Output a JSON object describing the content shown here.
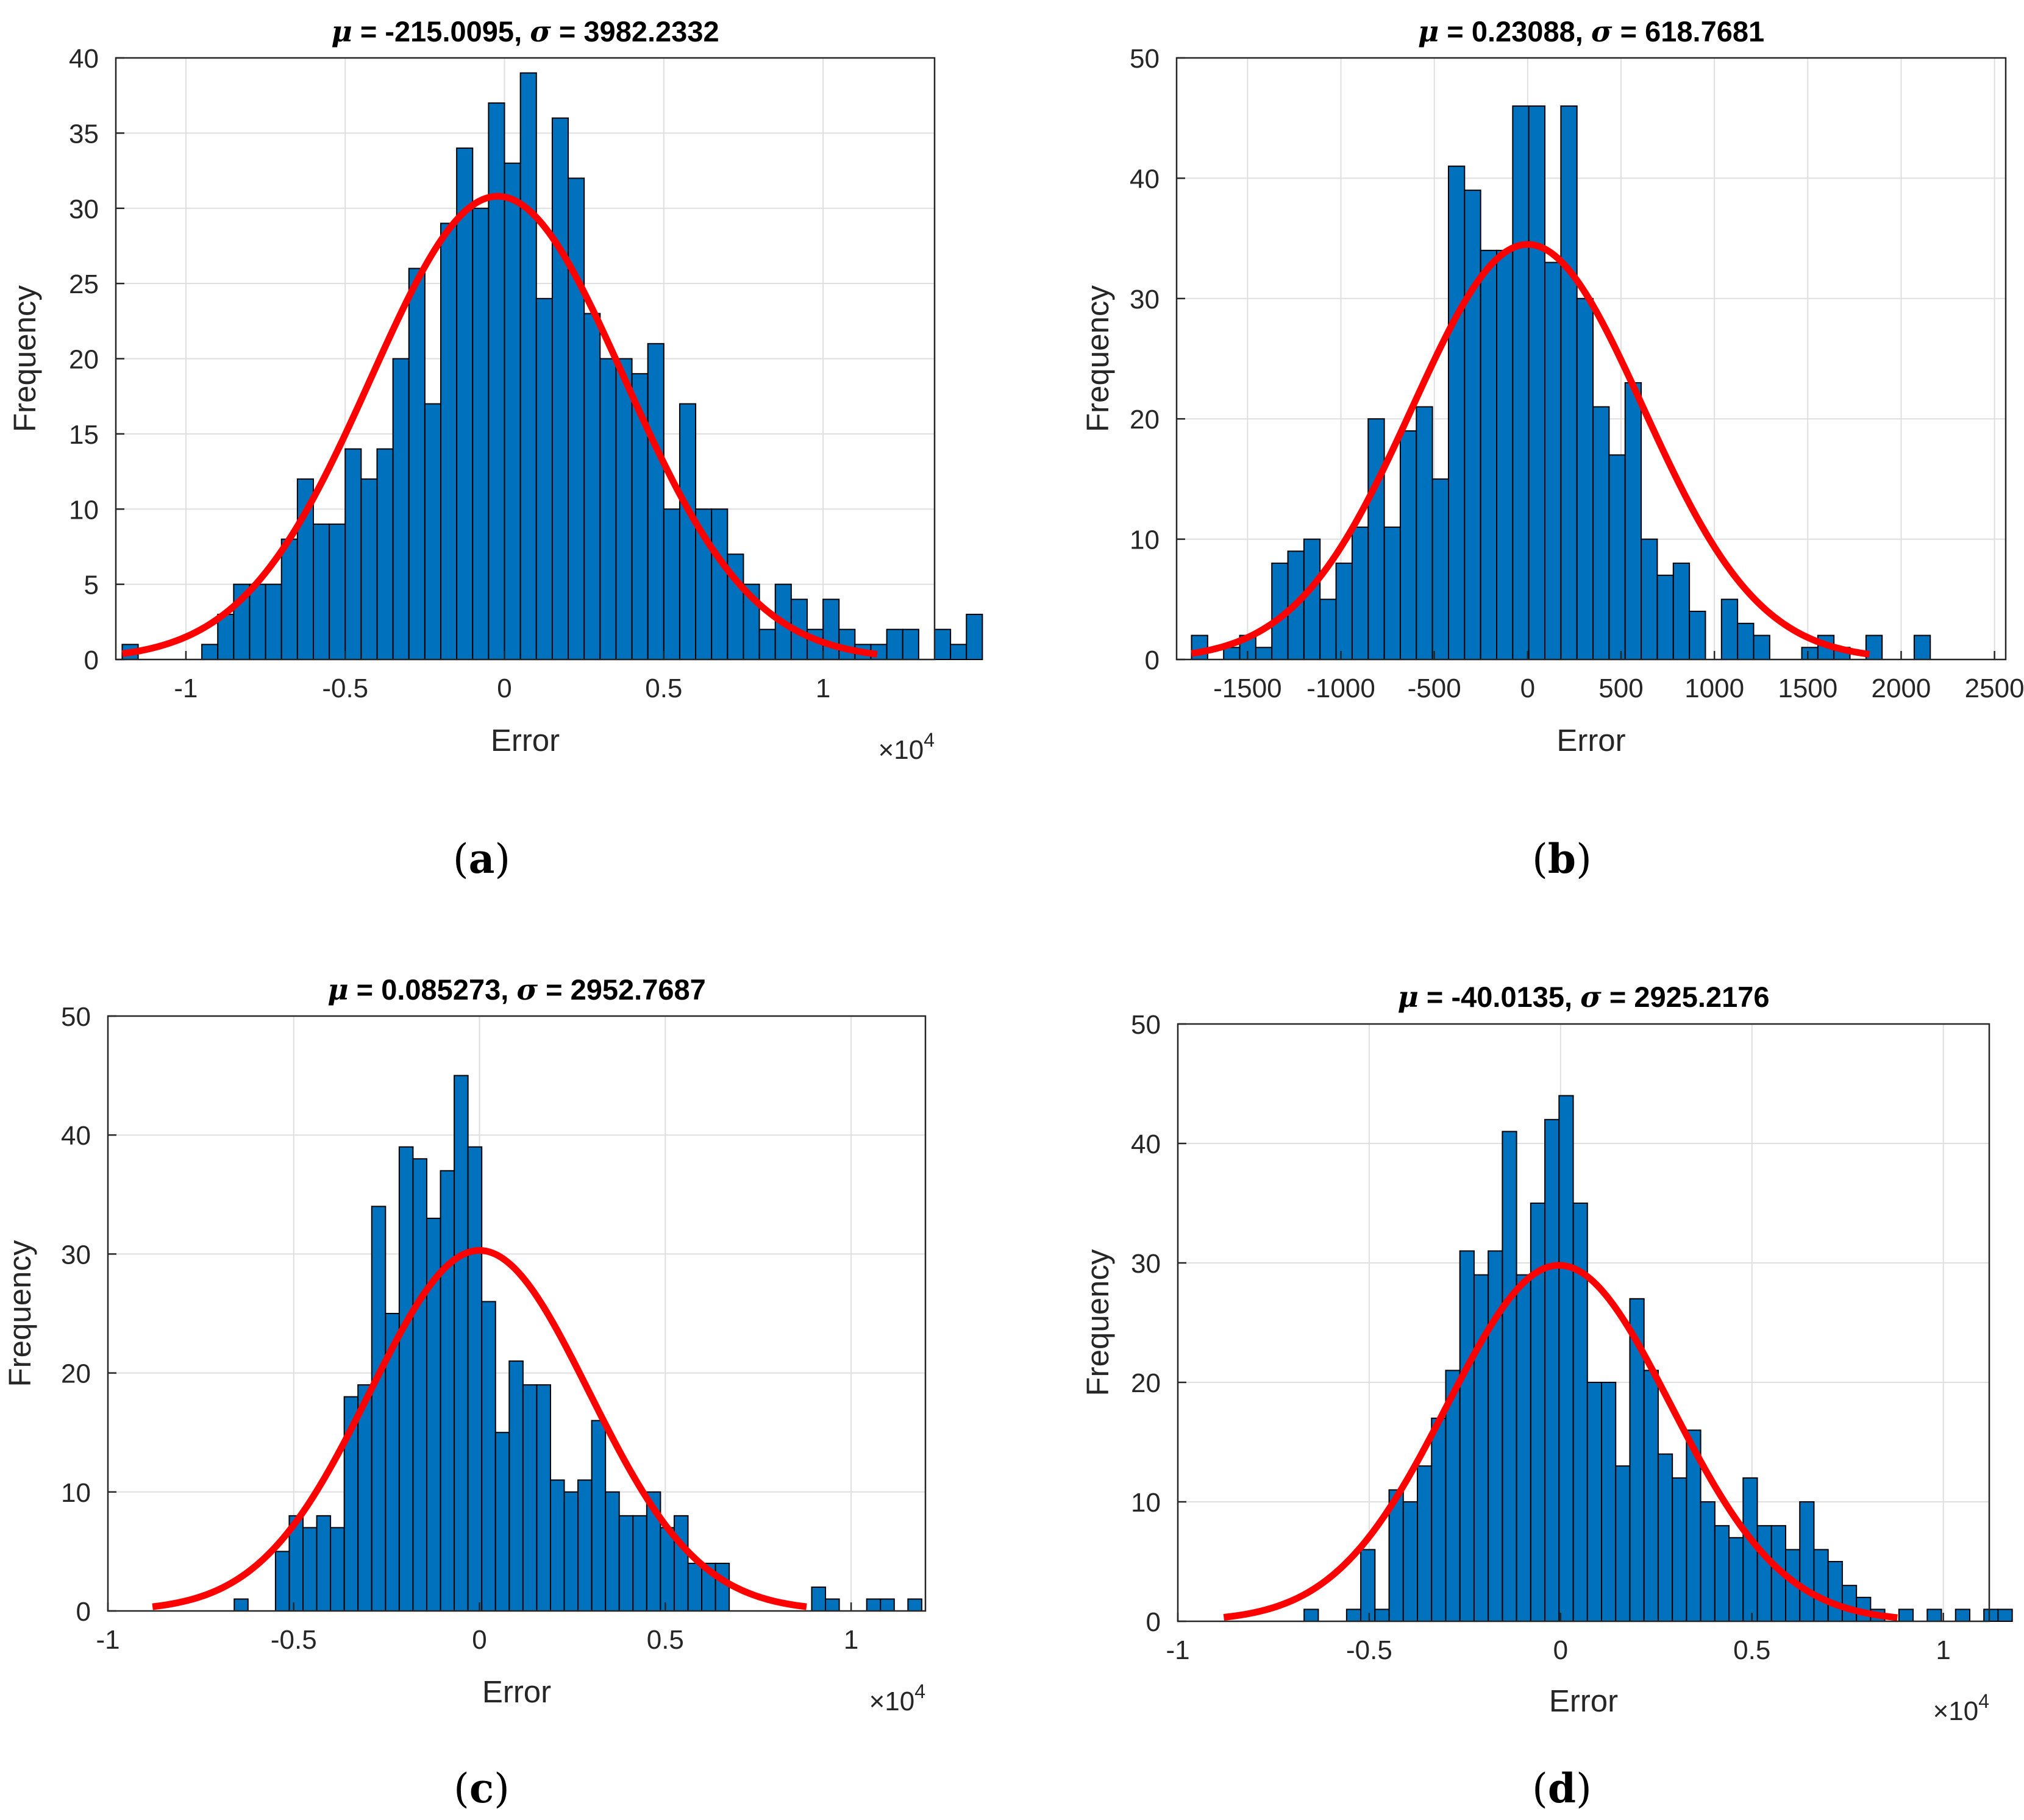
{
  "chart_data": [
    {
      "type": "bar",
      "panel": "a",
      "caption_label": "a",
      "title_mu": "-215.0095",
      "title_sigma": "3982.2332",
      "xlabel": "Error",
      "ylabel": "Frequency",
      "x_scale_label": "×10",
      "x_scale_exp": "4",
      "xlim": [
        -1.22,
        1.35
      ],
      "ylim": [
        0,
        40
      ],
      "xticks": [
        -1,
        -0.5,
        0,
        0.5,
        1
      ],
      "xtick_labels": [
        "-1",
        "-0.5",
        "0",
        "0.5",
        "1"
      ],
      "yticks": [
        0,
        5,
        10,
        15,
        20,
        25,
        30,
        35,
        40
      ],
      "grid": true,
      "bin_start": -1.2,
      "bin_width": 0.05,
      "counts": [
        1,
        0,
        0,
        0,
        0,
        1,
        3,
        5,
        5,
        5,
        8,
        12,
        9,
        9,
        14,
        12,
        14,
        20,
        26,
        17,
        29,
        34,
        30,
        37,
        33,
        39,
        24,
        36,
        32,
        23,
        20,
        20,
        19,
        21,
        10,
        17,
        10,
        10,
        7,
        5,
        2,
        5,
        4,
        2,
        4,
        2,
        1,
        1,
        2,
        2,
        0,
        2,
        1,
        3
      ],
      "fit": {
        "mu": -0.0215,
        "sigma": 0.3982,
        "peak": 30.8,
        "x_from": -1.2,
        "x_to": 1.17
      }
    },
    {
      "type": "bar",
      "panel": "b",
      "caption_label": "b",
      "title_mu": "0.23088",
      "title_sigma": "618.7681",
      "xlabel": "Error",
      "ylabel": "Frequency",
      "xlim": [
        -1880,
        2560
      ],
      "ylim": [
        0,
        50
      ],
      "xticks": [
        -1500,
        -1000,
        -500,
        0,
        500,
        1000,
        1500,
        2000,
        2500
      ],
      "xtick_labels": [
        "-1500",
        "-1000",
        "-500",
        "0",
        "500",
        "1000",
        "1500",
        "2000",
        "2500"
      ],
      "yticks": [
        0,
        10,
        20,
        30,
        40,
        50
      ],
      "grid": true,
      "bin_start": -1800,
      "bin_width": 86,
      "counts": [
        2,
        0,
        1,
        2,
        1,
        8,
        9,
        10,
        5,
        8,
        11,
        20,
        11,
        19,
        21,
        15,
        41,
        39,
        34,
        34,
        46,
        46,
        33,
        46,
        30,
        21,
        17,
        23,
        10,
        7,
        8,
        4,
        0,
        5,
        3,
        2,
        0,
        0,
        1,
        2,
        1,
        0,
        2,
        0,
        0,
        2,
        0,
        0
      ],
      "fit": {
        "mu": 0.23,
        "sigma": 618.77,
        "peak": 34.5,
        "x_from": -1800,
        "x_to": 1830
      }
    },
    {
      "type": "bar",
      "panel": "c",
      "caption_label": "c",
      "title_mu": "0.085273",
      "title_sigma": "2952.7687",
      "xlabel": "Error",
      "ylabel": "Frequency",
      "x_scale_label": "×10",
      "x_scale_exp": "4",
      "xlim": [
        -1,
        1.2
      ],
      "ylim": [
        0,
        50
      ],
      "xticks": [
        -1,
        -0.5,
        0,
        0.5,
        1
      ],
      "xtick_labels": [
        "-1",
        "-0.5",
        "0",
        "0.5",
        "1"
      ],
      "yticks": [
        0,
        10,
        20,
        30,
        40,
        50
      ],
      "grid": true,
      "bin_start": -0.66,
      "bin_width": 0.037,
      "counts": [
        1,
        0,
        0,
        5,
        8,
        7,
        8,
        7,
        18,
        19,
        34,
        25,
        39,
        38,
        33,
        37,
        45,
        39,
        26,
        15,
        21,
        19,
        19,
        11,
        10,
        11,
        16,
        10,
        8,
        8,
        10,
        7,
        8,
        4,
        4,
        4,
        0,
        0,
        0,
        0,
        0,
        0,
        2,
        1,
        0,
        0,
        1,
        1,
        0,
        1
      ],
      "fit": {
        "mu": 0.0,
        "sigma": 0.2953,
        "peak": 30.3,
        "x_from": -0.88,
        "x_to": 0.88
      }
    },
    {
      "type": "bar",
      "panel": "d",
      "caption_label": "d",
      "title_mu": "-40.0135",
      "title_sigma": "2925.2176",
      "xlabel": "Error",
      "ylabel": "Frequency",
      "x_scale_label": "×10",
      "x_scale_exp": "4",
      "xlim": [
        -1,
        1.12
      ],
      "ylim": [
        0,
        50
      ],
      "xticks": [
        -1,
        -0.5,
        0,
        0.5,
        1
      ],
      "xtick_labels": [
        "-1",
        "-0.5",
        "0",
        "0.5",
        "1"
      ],
      "yticks": [
        0,
        10,
        20,
        30,
        40,
        50
      ],
      "grid": true,
      "bin_start": -0.67,
      "bin_width": 0.037,
      "counts": [
        1,
        0,
        0,
        1,
        6,
        1,
        11,
        10,
        13,
        17,
        21,
        31,
        29,
        31,
        41,
        29,
        35,
        42,
        44,
        35,
        20,
        20,
        13,
        27,
        21,
        14,
        12,
        16,
        10,
        8,
        7,
        12,
        8,
        8,
        6,
        10,
        6,
        5,
        3,
        2,
        1,
        0,
        1,
        0,
        1,
        0,
        1,
        0,
        1,
        1
      ],
      "fit": {
        "mu": -0.004,
        "sigma": 0.2925,
        "peak": 29.8,
        "x_from": -0.88,
        "x_to": 0.88
      }
    }
  ]
}
